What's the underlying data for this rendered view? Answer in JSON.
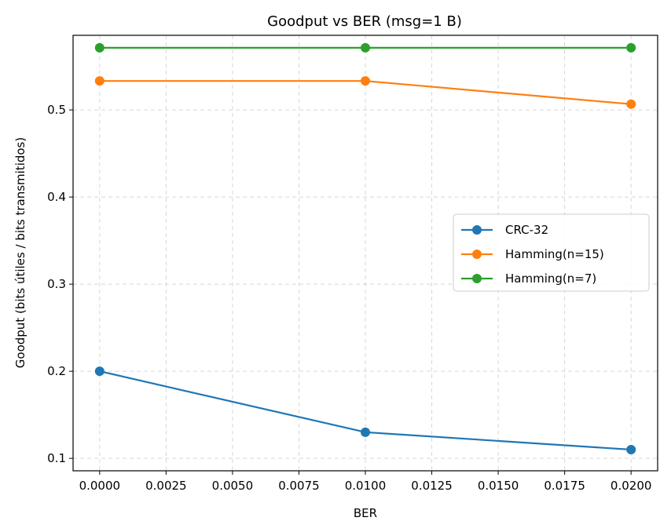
{
  "chart_data": {
    "type": "line",
    "title": "Goodput vs BER (msg=1 B)",
    "xlabel": "BER",
    "ylabel": "Goodput (bits útiles / bits transmitidos)",
    "x": [
      0.0,
      0.01,
      0.02
    ],
    "xlim": [
      -0.001,
      0.021
    ],
    "ylim": [
      0.0857,
      0.5857
    ],
    "xticks": [
      0.0,
      0.0025,
      0.005,
      0.0075,
      0.01,
      0.0125,
      0.015,
      0.0175,
      0.02
    ],
    "xtick_labels": [
      "0.0000",
      "0.0025",
      "0.0050",
      "0.0075",
      "0.0100",
      "0.0125",
      "0.0150",
      "0.0175",
      "0.0200"
    ],
    "yticks": [
      0.1,
      0.2,
      0.3,
      0.4,
      0.5
    ],
    "ytick_labels": [
      "0.1",
      "0.2",
      "0.3",
      "0.4",
      "0.5"
    ],
    "grid": true,
    "legend_position": "center-right",
    "series": [
      {
        "name": "CRC-32",
        "color": "#1f77b4",
        "values": [
          0.2,
          0.13,
          0.11
        ]
      },
      {
        "name": "Hamming(n=15)",
        "color": "#ff7f0e",
        "values": [
          0.5333,
          0.5333,
          0.5067
        ]
      },
      {
        "name": "Hamming(n=7)",
        "color": "#2ca02c",
        "values": [
          0.5714,
          0.5714,
          0.5714
        ]
      }
    ]
  }
}
